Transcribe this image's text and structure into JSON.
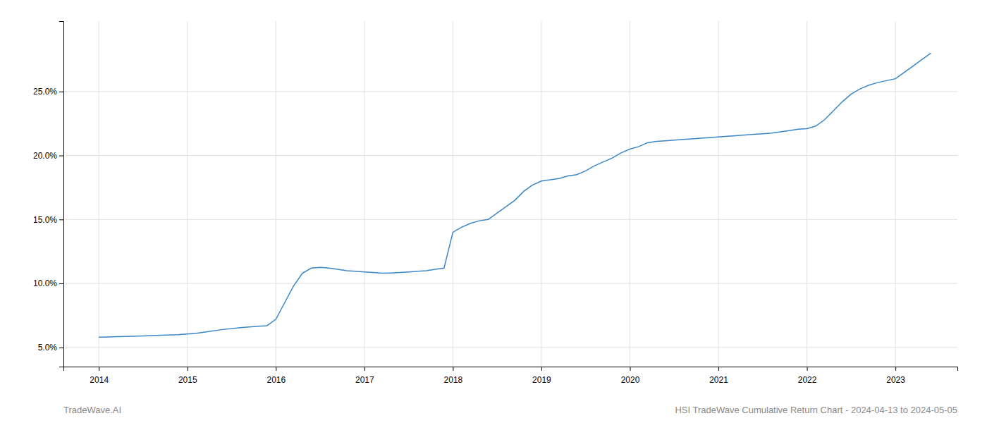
{
  "chart_data": {
    "type": "line",
    "x": [
      2014.0,
      2014.1,
      2014.2,
      2014.3,
      2014.5,
      2014.7,
      2014.9,
      2015.0,
      2015.1,
      2015.2,
      2015.4,
      2015.6,
      2015.8,
      2015.9,
      2016.0,
      2016.1,
      2016.2,
      2016.3,
      2016.4,
      2016.5,
      2016.6,
      2016.7,
      2016.8,
      2016.9,
      2017.0,
      2017.1,
      2017.2,
      2017.3,
      2017.4,
      2017.5,
      2017.6,
      2017.7,
      2017.8,
      2017.9,
      2018.0,
      2018.1,
      2018.2,
      2018.3,
      2018.4,
      2018.5,
      2018.6,
      2018.7,
      2018.8,
      2018.9,
      2019.0,
      2019.1,
      2019.2,
      2019.3,
      2019.4,
      2019.5,
      2019.6,
      2019.7,
      2019.8,
      2019.9,
      2020.0,
      2020.1,
      2020.2,
      2020.3,
      2020.4,
      2020.5,
      2020.6,
      2020.7,
      2020.8,
      2020.9,
      2021.0,
      2021.1,
      2021.2,
      2021.3,
      2021.4,
      2021.5,
      2021.6,
      2021.7,
      2021.8,
      2021.9,
      2022.0,
      2022.1,
      2022.2,
      2022.3,
      2022.4,
      2022.5,
      2022.6,
      2022.7,
      2022.8,
      2022.9,
      2023.0,
      2023.1,
      2023.2,
      2023.3,
      2023.4
    ],
    "values": [
      5.8,
      5.82,
      5.84,
      5.86,
      5.9,
      5.95,
      6.0,
      6.05,
      6.1,
      6.2,
      6.4,
      6.55,
      6.65,
      6.7,
      7.2,
      8.5,
      9.8,
      10.8,
      11.2,
      11.25,
      11.2,
      11.1,
      11.0,
      10.95,
      10.9,
      10.85,
      10.8,
      10.82,
      10.85,
      10.9,
      10.95,
      11.0,
      11.1,
      11.2,
      14.0,
      14.4,
      14.7,
      14.9,
      15.0,
      15.5,
      16.0,
      16.5,
      17.2,
      17.7,
      18.0,
      18.1,
      18.2,
      18.4,
      18.5,
      18.8,
      19.2,
      19.5,
      19.8,
      20.2,
      20.5,
      20.7,
      21.0,
      21.1,
      21.15,
      21.2,
      21.25,
      21.3,
      21.35,
      21.4,
      21.45,
      21.5,
      21.55,
      21.6,
      21.65,
      21.7,
      21.75,
      21.85,
      21.95,
      22.05,
      22.1,
      22.3,
      22.8,
      23.5,
      24.2,
      24.8,
      25.2,
      25.5,
      25.7,
      25.85,
      26.0,
      26.5,
      27.0,
      27.5,
      28.0
    ],
    "color": "#3a86c8",
    "xlim": [
      2013.6,
      2023.7
    ],
    "xticks": [
      2014,
      2015,
      2016,
      2017,
      2018,
      2019,
      2020,
      2021,
      2022,
      2023
    ],
    "ylim": [
      3.5,
      30.5
    ],
    "yticks": [
      {
        "value": 5.0,
        "label": "5.0%"
      },
      {
        "value": 10.0,
        "label": "10.0%"
      },
      {
        "value": 15.0,
        "label": "15.0%"
      },
      {
        "value": 20.0,
        "label": "20.0%"
      },
      {
        "value": 25.0,
        "label": "25.0%"
      }
    ],
    "grid": true,
    "annotations": [
      "TradeWave.AI",
      "HSI TradeWave Cumulative Return Chart - 2024-04-13 to 2024-05-05"
    ]
  }
}
